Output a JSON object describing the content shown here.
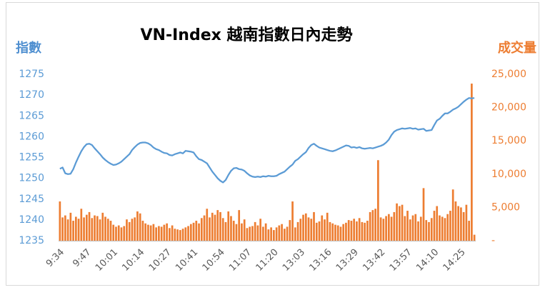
{
  "chart_data": {
    "type": "combo",
    "title": "VN-Index 越南指數日內走勢",
    "ylabel": "指數",
    "y2label": "成交量",
    "ylim": [
      1235,
      1275
    ],
    "yticks": [
      1235,
      1240,
      1245,
      1250,
      1255,
      1260,
      1265,
      1270,
      1275
    ],
    "y2lim": [
      0,
      25000
    ],
    "y2ticks": [
      {
        "value": 0,
        "label": "-"
      },
      {
        "value": 5000,
        "label": "5,000"
      },
      {
        "value": 10000,
        "label": "10,000"
      },
      {
        "value": 15000,
        "label": "15,000"
      },
      {
        "value": 20000,
        "label": "20,000"
      },
      {
        "value": 25000,
        "label": "25,000"
      }
    ],
    "categories": [
      "9:34",
      null,
      null,
      null,
      null,
      null,
      null,
      null,
      null,
      null,
      "9:47",
      null,
      null,
      null,
      null,
      null,
      null,
      null,
      null,
      null,
      "10:01",
      null,
      null,
      null,
      null,
      null,
      null,
      null,
      null,
      null,
      "10:14",
      null,
      null,
      null,
      null,
      null,
      null,
      null,
      null,
      null,
      "10:27",
      null,
      null,
      null,
      null,
      null,
      null,
      null,
      null,
      null,
      "10:41",
      null,
      null,
      null,
      null,
      null,
      null,
      null,
      null,
      null,
      "10:54",
      null,
      null,
      null,
      null,
      null,
      null,
      null,
      null,
      null,
      "11:07",
      null,
      null,
      null,
      null,
      null,
      null,
      null,
      null,
      null,
      "11:20",
      null,
      null,
      null,
      null,
      null,
      null,
      null,
      null,
      null,
      "13:03",
      null,
      null,
      null,
      null,
      null,
      null,
      null,
      null,
      null,
      "13:16",
      null,
      null,
      null,
      null,
      null,
      null,
      null,
      null,
      null,
      "13:29",
      null,
      null,
      null,
      null,
      null,
      null,
      null,
      null,
      null,
      "13:42",
      null,
      null,
      null,
      null,
      null,
      null,
      null,
      null,
      null,
      "13:57",
      null,
      null,
      null,
      null,
      null,
      null,
      null,
      null,
      null,
      "14:10",
      null,
      null,
      null,
      null,
      null,
      null,
      null,
      null,
      null,
      "14:25",
      null,
      null,
      null,
      null,
      null
    ],
    "series": [
      {
        "type": "bar",
        "axis": "y2",
        "color": "#ed7d31",
        "values": [
          5900,
          3500,
          3800,
          3200,
          4200,
          3000,
          3600,
          3300,
          4800,
          3500,
          3900,
          4300,
          3400,
          3800,
          3700,
          3200,
          4200,
          3600,
          3300,
          3000,
          2400,
          2100,
          2300,
          2000,
          2200,
          3200,
          2800,
          3300,
          3500,
          4400,
          4100,
          3000,
          2600,
          2400,
          2300,
          2500,
          2000,
          2200,
          2100,
          2400,
          2600,
          1900,
          2300,
          1800,
          1700,
          1600,
          1800,
          2000,
          2200,
          2500,
          2700,
          3000,
          2600,
          3400,
          3800,
          4800,
          3500,
          4200,
          3900,
          4600,
          4300,
          3400,
          2800,
          4400,
          3700,
          3000,
          2500,
          4600,
          2600,
          3200,
          1900,
          2100,
          2200,
          2800,
          2300,
          3300,
          2100,
          2600,
          1700,
          2000,
          1600,
          2000,
          2300,
          2500,
          1800,
          2100,
          3100,
          5900,
          2000,
          2800,
          3300,
          3900,
          4100,
          3500,
          3300,
          4300,
          2700,
          2900,
          3800,
          3200,
          4200,
          2800,
          2600,
          2400,
          2300,
          2100,
          2500,
          2700,
          3100,
          3000,
          3300,
          2900,
          3400,
          2800,
          2700,
          3000,
          4300,
          4600,
          4800,
          12100,
          3500,
          3300,
          3700,
          4000,
          3600,
          4300,
          5600,
          5200,
          5400,
          3700,
          4500,
          3200,
          3800,
          4000,
          2900,
          3600,
          7900,
          3100,
          2800,
          3400,
          4500,
          5200,
          3800,
          3600,
          3400,
          4000,
          4500,
          7700,
          5900,
          5200,
          5000,
          4300,
          5400,
          3000,
          23600,
          900
        ]
      },
      {
        "type": "line",
        "axis": "y",
        "color": "#5b9bd5",
        "values": [
          1252.3,
          1252.6,
          1251.2,
          1251.0,
          1251.1,
          1252.2,
          1253.8,
          1255.2,
          1256.5,
          1257.5,
          1258.2,
          1258.3,
          1258.0,
          1257.2,
          1256.5,
          1255.8,
          1255.0,
          1254.4,
          1253.9,
          1253.5,
          1253.2,
          1253.3,
          1253.6,
          1254.0,
          1254.6,
          1255.2,
          1255.8,
          1256.8,
          1257.5,
          1258.1,
          1258.5,
          1258.6,
          1258.6,
          1258.4,
          1258.0,
          1257.4,
          1257.0,
          1256.8,
          1256.4,
          1256.1,
          1256.0,
          1255.6,
          1255.5,
          1255.8,
          1256.0,
          1256.2,
          1256.0,
          1256.6,
          1256.5,
          1256.4,
          1256.2,
          1255.3,
          1254.6,
          1254.4,
          1254.0,
          1253.6,
          1252.6,
          1251.6,
          1250.8,
          1250.0,
          1249.4,
          1249.0,
          1249.6,
          1250.8,
          1251.8,
          1252.4,
          1252.5,
          1252.2,
          1252.1,
          1251.8,
          1251.2,
          1250.7,
          1250.4,
          1250.3,
          1250.4,
          1250.3,
          1250.5,
          1250.4,
          1250.6,
          1250.5,
          1250.5,
          1250.6,
          1251.0,
          1251.3,
          1251.6,
          1252.2,
          1252.8,
          1253.3,
          1254.2,
          1254.6,
          1255.2,
          1255.8,
          1256.3,
          1257.3,
          1258.0,
          1258.3,
          1257.8,
          1257.4,
          1257.2,
          1257.0,
          1256.8,
          1256.6,
          1256.5,
          1256.7,
          1257.0,
          1257.3,
          1257.6,
          1257.9,
          1257.8,
          1257.4,
          1257.5,
          1257.3,
          1257.5,
          1257.2,
          1257.1,
          1257.2,
          1257.3,
          1257.2,
          1257.4,
          1257.6,
          1257.8,
          1258.1,
          1258.6,
          1259.3,
          1260.4,
          1261.2,
          1261.6,
          1261.8,
          1262.0,
          1261.9,
          1262.0,
          1262.1,
          1261.9,
          1262.0,
          1261.7,
          1261.8,
          1261.9,
          1261.4,
          1261.5,
          1261.6,
          1262.8,
          1263.9,
          1264.3,
          1265.0,
          1265.6,
          1265.6,
          1266.0,
          1266.5,
          1266.8,
          1267.2,
          1267.8,
          1268.4,
          1268.9,
          1269.3,
          1269.2,
          1269.3
        ]
      }
    ]
  }
}
